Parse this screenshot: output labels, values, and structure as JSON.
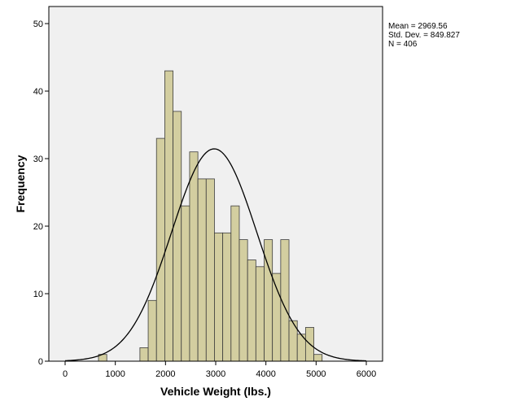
{
  "chart_data": {
    "type": "bar",
    "subtype": "histogram",
    "xlabel": "Vehicle Weight (lbs.)",
    "ylabel": "Frequency",
    "xlim": [
      -180,
      6270
    ],
    "ylim": [
      0,
      50
    ],
    "xticks": [
      0,
      1000,
      2000,
      3000,
      4000,
      5000,
      6000
    ],
    "yticks": [
      0,
      10,
      20,
      30,
      40,
      50
    ],
    "bin_width": 165,
    "bins": [
      {
        "x0": 665,
        "count": 1
      },
      {
        "x0": 1490,
        "count": 2
      },
      {
        "x0": 1655,
        "count": 9
      },
      {
        "x0": 1820,
        "count": 33
      },
      {
        "x0": 1985,
        "count": 43
      },
      {
        "x0": 2150,
        "count": 37
      },
      {
        "x0": 2315,
        "count": 23
      },
      {
        "x0": 2480,
        "count": 31
      },
      {
        "x0": 2645,
        "count": 27
      },
      {
        "x0": 2810,
        "count": 27
      },
      {
        "x0": 2975,
        "count": 19
      },
      {
        "x0": 3140,
        "count": 19
      },
      {
        "x0": 3305,
        "count": 23
      },
      {
        "x0": 3470,
        "count": 18
      },
      {
        "x0": 3635,
        "count": 15
      },
      {
        "x0": 3800,
        "count": 14
      },
      {
        "x0": 3965,
        "count": 18
      },
      {
        "x0": 4130,
        "count": 13
      },
      {
        "x0": 4295,
        "count": 18
      },
      {
        "x0": 4460,
        "count": 6
      },
      {
        "x0": 4625,
        "count": 4
      },
      {
        "x0": 4790,
        "count": 5
      },
      {
        "x0": 4955,
        "count": 1
      }
    ],
    "normal_curve": {
      "mean": 2969.56,
      "sd": 849.827,
      "n": 406
    },
    "grid": false,
    "colors": {
      "plot_background": "#f0f0f0",
      "bar_fill": "#d3cea0",
      "bar_stroke": "#3c3c3c",
      "curve": "#000000"
    }
  },
  "stats": {
    "mean_text": "Mean = 2969.56",
    "sd_text": "Std. Dev. = 849.827",
    "n_text": "N = 406"
  }
}
